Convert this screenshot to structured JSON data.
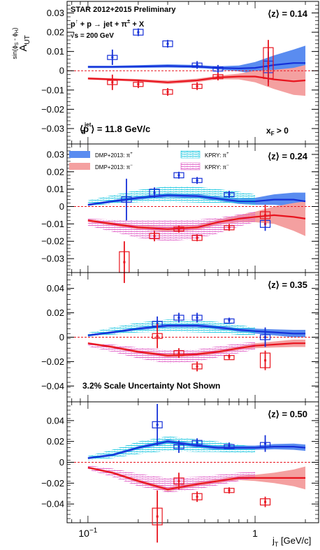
{
  "figure": {
    "experiment": "STAR 2012+2015 Preliminary",
    "reaction": [
      "p",
      "↑",
      " + p → jet + π",
      "±",
      " + X"
    ],
    "energy": "√s = 200 GeV",
    "pt_label": [
      "⟨p",
      "jet",
      "T",
      "⟩ = 11.8 GeV/c"
    ],
    "xf_label": [
      "x",
      "F",
      " > 0"
    ],
    "scale_note": "3.2% Scale Uncertainty Not Shown",
    "ylabel_main": "A",
    "ylabel_sub": "UT",
    "ylabel_sup": "sin(ϕ",
    "ylabel_sup_tail": "S",
    "ylabel_sup_mid": " - ϕ",
    "ylabel_sup_h": "H",
    "ylabel_sup_end": ")",
    "xlabel": "j",
    "xlabel_sub": "T",
    "xlabel_unit": " [GeV/c]",
    "legend": [
      {
        "label": "DMP+2013: π",
        "sup": "+",
        "style": "solid-blue"
      },
      {
        "label": "KPRY: π",
        "sup": "+",
        "style": "hatch-cyan"
      },
      {
        "label": "DMP+2013: π",
        "sup": "−",
        "style": "solid-red"
      },
      {
        "label": "KPRY: π",
        "sup": "−",
        "style": "hatch-magenta"
      }
    ]
  },
  "colors": {
    "pip": "#1530d8",
    "pim": "#e8141e",
    "dmp_pip_band": "#5a8cf0",
    "dmp_pim_band": "#f4a0a0",
    "kpry_pip": "#19c8e0",
    "kpry_pim": "#e060c8"
  },
  "chart_data": [
    {
      "type": "scatter",
      "title": "⟨z⟩ = 0.14",
      "x_scale": "log",
      "xlim": [
        0.075,
        2.4
      ],
      "ylim": [
        -0.038,
        0.036
      ],
      "yticks": [
        -0.03,
        -0.02,
        -0.01,
        0,
        0.01,
        0.02,
        0.03
      ],
      "ytick_labels": [
        "−0.03",
        "−0.02",
        "−0.01",
        "0",
        "0.01",
        "0.02",
        "0.03"
      ],
      "series": [
        {
          "charge": "pip",
          "points": [
            {
              "x": 0.14,
              "y": 0.007,
              "stat": 0.004,
              "sys": 0.001
            },
            {
              "x": 0.2,
              "y": 0.02,
              "stat": 0.002,
              "sys": 0.0015
            },
            {
              "x": 0.3,
              "y": 0.014,
              "stat": 0.002,
              "sys": 0.0015
            },
            {
              "x": 0.45,
              "y": 0.003,
              "stat": 0.002,
              "sys": 0.001
            },
            {
              "x": 0.6,
              "y": 0.001,
              "stat": 0.002,
              "sys": 0.001
            },
            {
              "x": 1.2,
              "y": 0.002,
              "stat": 0.008,
              "sys": 0.003
            }
          ]
        },
        {
          "charge": "pim",
          "points": [
            {
              "x": 0.14,
              "y": -0.006,
              "stat": 0.004,
              "sys": 0.001
            },
            {
              "x": 0.2,
              "y": -0.007,
              "stat": 0.002,
              "sys": 0.001
            },
            {
              "x": 0.3,
              "y": -0.011,
              "stat": 0.002,
              "sys": 0.0012
            },
            {
              "x": 0.45,
              "y": -0.008,
              "stat": 0.002,
              "sys": 0.001
            },
            {
              "x": 0.6,
              "y": -0.003,
              "stat": 0.002,
              "sys": 0.001
            },
            {
              "x": 1.2,
              "y": 0.004,
              "stat": 0.012,
              "sys": 0.008
            }
          ]
        }
      ],
      "curves": {
        "x": [
          0.1,
          0.14,
          0.2,
          0.3,
          0.45,
          0.6,
          0.8,
          1.0,
          1.3,
          1.7,
          2.0
        ],
        "pip_dmp": [
          0.002,
          0.002,
          0.0022,
          0.0025,
          0.0022,
          0.0015,
          0.0012,
          0.0015,
          0.003,
          0.004,
          0.004
        ],
        "pip_dmp_err": [
          0.0006,
          0.0006,
          0.0007,
          0.0008,
          0.0008,
          0.0008,
          0.0015,
          0.003,
          0.005,
          0.007,
          0.009
        ],
        "pim_dmp": [
          -0.004,
          -0.0045,
          -0.005,
          -0.006,
          -0.005,
          -0.0035,
          -0.003,
          -0.003,
          -0.0045,
          -0.0055,
          -0.005
        ],
        "pim_dmp_err": [
          0.0006,
          0.0006,
          0.0007,
          0.0009,
          0.0009,
          0.0009,
          0.0015,
          0.003,
          0.005,
          0.007,
          0.008
        ],
        "kpry_pip": null,
        "kpry_pim": null
      }
    },
    {
      "type": "scatter",
      "title": "⟨z⟩ = 0.24",
      "x_scale": "log",
      "xlim": [
        0.075,
        2.4
      ],
      "ylim": [
        -0.038,
        0.036
      ],
      "yticks": [
        -0.03,
        -0.02,
        -0.01,
        0,
        0.01,
        0.02,
        0.03
      ],
      "ytick_labels": [
        "−0.03",
        "−0.02",
        "−0.01",
        "0",
        "0.01",
        "0.02",
        "0.03"
      ],
      "series": [
        {
          "charge": "pip",
          "points": [
            {
              "x": 0.17,
              "y": 0.004,
              "stat": 0.012,
              "sys": 0.0015
            },
            {
              "x": 0.25,
              "y": 0.008,
              "stat": 0.003,
              "sys": 0.002
            },
            {
              "x": 0.35,
              "y": 0.018,
              "stat": 0.002,
              "sys": 0.0015
            },
            {
              "x": 0.45,
              "y": 0.015,
              "stat": 0.002,
              "sys": 0.0012
            },
            {
              "x": 0.7,
              "y": 0.007,
              "stat": 0.002,
              "sys": 0.001
            },
            {
              "x": 1.15,
              "y": -0.01,
              "stat": 0.004,
              "sys": 0.002
            }
          ]
        },
        {
          "charge": "pim",
          "points": [
            {
              "x": 0.165,
              "y": -0.032,
              "stat": 0.012,
              "sys": 0.006
            },
            {
              "x": 0.25,
              "y": -0.017,
              "stat": 0.003,
              "sys": 0.0015
            },
            {
              "x": 0.35,
              "y": -0.013,
              "stat": 0.002,
              "sys": 0.0012
            },
            {
              "x": 0.45,
              "y": -0.018,
              "stat": 0.002,
              "sys": 0.0015
            },
            {
              "x": 0.7,
              "y": -0.012,
              "stat": 0.002,
              "sys": 0.001
            },
            {
              "x": 1.15,
              "y": -0.005,
              "stat": 0.006,
              "sys": 0.002
            }
          ]
        }
      ],
      "curves": {
        "x": [
          0.1,
          0.14,
          0.2,
          0.3,
          0.45,
          0.6,
          0.8,
          1.0,
          1.3,
          1.7,
          2.0
        ],
        "pip_dmp": [
          0.001,
          0.003,
          0.005,
          0.0065,
          0.006,
          0.0045,
          0.003,
          0.003,
          0.004,
          0.004,
          0.003
        ],
        "pip_dmp_err": [
          0.0006,
          0.0008,
          0.001,
          0.0012,
          0.0012,
          0.0012,
          0.0015,
          0.002,
          0.003,
          0.004,
          0.005
        ],
        "pim_dmp": [
          -0.008,
          -0.01,
          -0.012,
          -0.013,
          -0.012,
          -0.009,
          -0.007,
          -0.006,
          -0.005,
          -0.006,
          -0.007
        ],
        "pim_dmp_err": [
          0.0008,
          0.001,
          0.0012,
          0.0015,
          0.0015,
          0.0015,
          0.002,
          0.003,
          0.005,
          0.008,
          0.01
        ],
        "kpry_pip": [
          0.002,
          0.004,
          0.006,
          0.0072,
          0.0068,
          0.006,
          0.005,
          0.004
        ],
        "kpry_pip_err": [
          0.0015,
          0.0025,
          0.0035,
          0.0045,
          0.0045,
          0.004,
          0.0035,
          0.003
        ],
        "kpry_pim": [
          -0.009,
          -0.011,
          -0.013,
          -0.014,
          -0.013,
          -0.011,
          -0.008,
          -0.006
        ],
        "kpry_pim_err": [
          0.002,
          0.0035,
          0.005,
          0.006,
          0.0055,
          0.0045,
          0.0035,
          0.003
        ]
      }
    },
    {
      "type": "scatter",
      "title": "⟨z⟩ = 0.35",
      "x_scale": "log",
      "xlim": [
        0.075,
        2.4
      ],
      "ylim": [
        -0.053,
        0.053
      ],
      "yticks": [
        -0.04,
        -0.02,
        0,
        0.02,
        0.04
      ],
      "ytick_labels": [
        "−0.04",
        "−0.02",
        "0",
        "0.02",
        "0.04"
      ],
      "series": [
        {
          "charge": "pip",
          "points": [
            {
              "x": 0.26,
              "y": 0.011,
              "stat": 0.006,
              "sys": 0.002
            },
            {
              "x": 0.35,
              "y": 0.016,
              "stat": 0.004,
              "sys": 0.002
            },
            {
              "x": 0.45,
              "y": 0.016,
              "stat": 0.004,
              "sys": 0.002
            },
            {
              "x": 0.7,
              "y": 0.014,
              "stat": 0.002,
              "sys": 0.001
            },
            {
              "x": 1.15,
              "y": 0.0,
              "stat": 0.008,
              "sys": 0.002
            }
          ]
        },
        {
          "charge": "pim",
          "points": [
            {
              "x": 0.26,
              "y": 0.001,
              "stat": 0.01,
              "sys": 0.002
            },
            {
              "x": 0.35,
              "y": -0.013,
              "stat": 0.004,
              "sys": 0.002
            },
            {
              "x": 0.45,
              "y": -0.024,
              "stat": 0.004,
              "sys": 0.002
            },
            {
              "x": 0.7,
              "y": -0.016,
              "stat": 0.002,
              "sys": 0.001
            },
            {
              "x": 1.15,
              "y": -0.019,
              "stat": 0.008,
              "sys": 0.006
            }
          ]
        }
      ],
      "curves": {
        "x": [
          0.1,
          0.14,
          0.2,
          0.3,
          0.45,
          0.6,
          0.8,
          1.0,
          1.3,
          1.7,
          2.0
        ],
        "pip_dmp": [
          0.0015,
          0.004,
          0.007,
          0.0095,
          0.0095,
          0.008,
          0.006,
          0.005,
          0.004,
          0.003,
          0.003
        ],
        "pip_dmp_err": [
          0.0008,
          0.001,
          0.0012,
          0.0015,
          0.0015,
          0.0015,
          0.0015,
          0.002,
          0.0025,
          0.003,
          0.003
        ],
        "pim_dmp": [
          -0.005,
          -0.008,
          -0.012,
          -0.015,
          -0.014,
          -0.012,
          -0.009,
          -0.007,
          -0.006,
          -0.005,
          -0.005
        ],
        "pim_dmp_err": [
          0.0008,
          0.001,
          0.0012,
          0.0015,
          0.0015,
          0.0015,
          0.0015,
          0.002,
          0.0025,
          0.003,
          0.003
        ],
        "kpry_pip": [
          0.002,
          0.005,
          0.008,
          0.0095,
          0.009,
          0.008,
          0.006,
          0.005
        ],
        "kpry_pip_err": [
          0.0015,
          0.003,
          0.004,
          0.005,
          0.005,
          0.0045,
          0.004,
          0.003
        ],
        "kpry_pim": [
          -0.006,
          -0.009,
          -0.013,
          -0.016,
          -0.015,
          -0.012,
          -0.009,
          -0.007
        ],
        "kpry_pim_err": [
          0.0015,
          0.003,
          0.0045,
          0.0055,
          0.005,
          0.0045,
          0.004,
          0.003
        ]
      }
    },
    {
      "type": "scatter",
      "title": "⟨z⟩ = 0.50",
      "x_scale": "log",
      "xlim": [
        0.075,
        2.4
      ],
      "ylim": [
        -0.058,
        0.058
      ],
      "yticks": [
        -0.04,
        -0.02,
        0,
        0.02,
        0.04
      ],
      "ytick_labels": [
        "−0.04",
        "−0.02",
        "0",
        "0.02",
        "0.04"
      ],
      "series": [
        {
          "charge": "pip",
          "points": [
            {
              "x": 0.26,
              "y": 0.036,
              "stat": 0.02,
              "sys": 0.003
            },
            {
              "x": 0.35,
              "y": 0.015,
              "stat": 0.006,
              "sys": 0.002
            },
            {
              "x": 0.45,
              "y": 0.019,
              "stat": 0.004,
              "sys": 0.002
            },
            {
              "x": 0.7,
              "y": 0.016,
              "stat": 0.003,
              "sys": 0.001
            },
            {
              "x": 1.15,
              "y": 0.018,
              "stat": 0.008,
              "sys": 0.001
            }
          ]
        },
        {
          "charge": "pim",
          "points": [
            {
              "x": 0.26,
              "y": -0.052,
              "stat": 0.025,
              "sys": 0.008
            },
            {
              "x": 0.35,
              "y": -0.018,
              "stat": 0.008,
              "sys": 0.003
            },
            {
              "x": 0.45,
              "y": -0.033,
              "stat": 0.005,
              "sys": 0.003
            },
            {
              "x": 0.7,
              "y": -0.027,
              "stat": 0.003,
              "sys": 0.002
            },
            {
              "x": 1.15,
              "y": -0.038,
              "stat": 0.005,
              "sys": 0.003
            }
          ]
        }
      ],
      "curves": {
        "x": [
          0.1,
          0.14,
          0.2,
          0.3,
          0.45,
          0.6,
          0.8,
          1.0,
          1.3,
          1.7,
          2.0
        ],
        "pip_dmp": [
          0.004,
          0.007,
          0.014,
          0.02,
          0.016,
          0.014,
          0.014,
          0.014,
          0.015,
          0.015,
          0.014
        ],
        "pip_dmp_err": [
          0.001,
          0.0012,
          0.0015,
          0.002,
          0.002,
          0.002,
          0.002,
          0.002,
          0.0025,
          0.003,
          0.003
        ],
        "pim_dmp": [
          -0.005,
          -0.01,
          -0.018,
          -0.026,
          -0.021,
          -0.018,
          -0.015,
          -0.015,
          -0.015,
          -0.015,
          -0.015
        ],
        "pim_dmp_err": [
          0.001,
          0.0012,
          0.0015,
          0.002,
          0.002,
          0.002,
          0.002,
          0.003,
          0.005,
          0.008,
          0.011
        ],
        "kpry_pip": [
          0.004,
          0.008,
          0.014,
          0.018,
          0.016,
          0.015,
          0.013,
          0.012
        ],
        "kpry_pip_err": [
          0.002,
          0.004,
          0.006,
          0.007,
          0.006,
          0.005,
          0.004,
          0.003
        ],
        "kpry_pim": [
          -0.005,
          -0.01,
          -0.017,
          -0.022,
          -0.02,
          -0.017,
          -0.014,
          -0.012
        ],
        "kpry_pim_err": [
          0.002,
          0.004,
          0.006,
          0.007,
          0.006,
          0.005,
          0.004,
          0.003
        ]
      }
    }
  ]
}
